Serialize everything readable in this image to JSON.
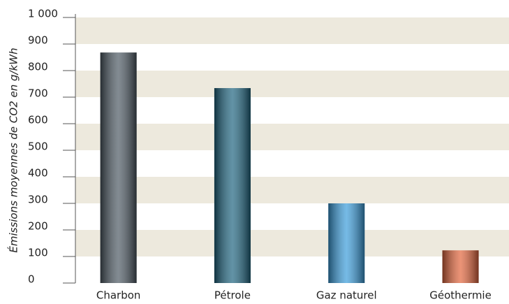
{
  "chart_data": {
    "type": "bar",
    "y_label": "Émissions moyennes de CO2 en g/kWh",
    "categories": [
      "Charbon",
      "Pétrole",
      "Gaz naturel",
      "Géothermie"
    ],
    "values": [
      868,
      734,
      300,
      123
    ],
    "colors": [
      "#4d5963",
      "#1f6580",
      "#3b9ddb",
      "#e2653c"
    ],
    "ylim": [
      0,
      1000
    ],
    "yticks": [
      0,
      100,
      200,
      300,
      400,
      500,
      600,
      700,
      800,
      900,
      {
        "value": 1000,
        "label": "1 000"
      }
    ],
    "grid": true
  }
}
